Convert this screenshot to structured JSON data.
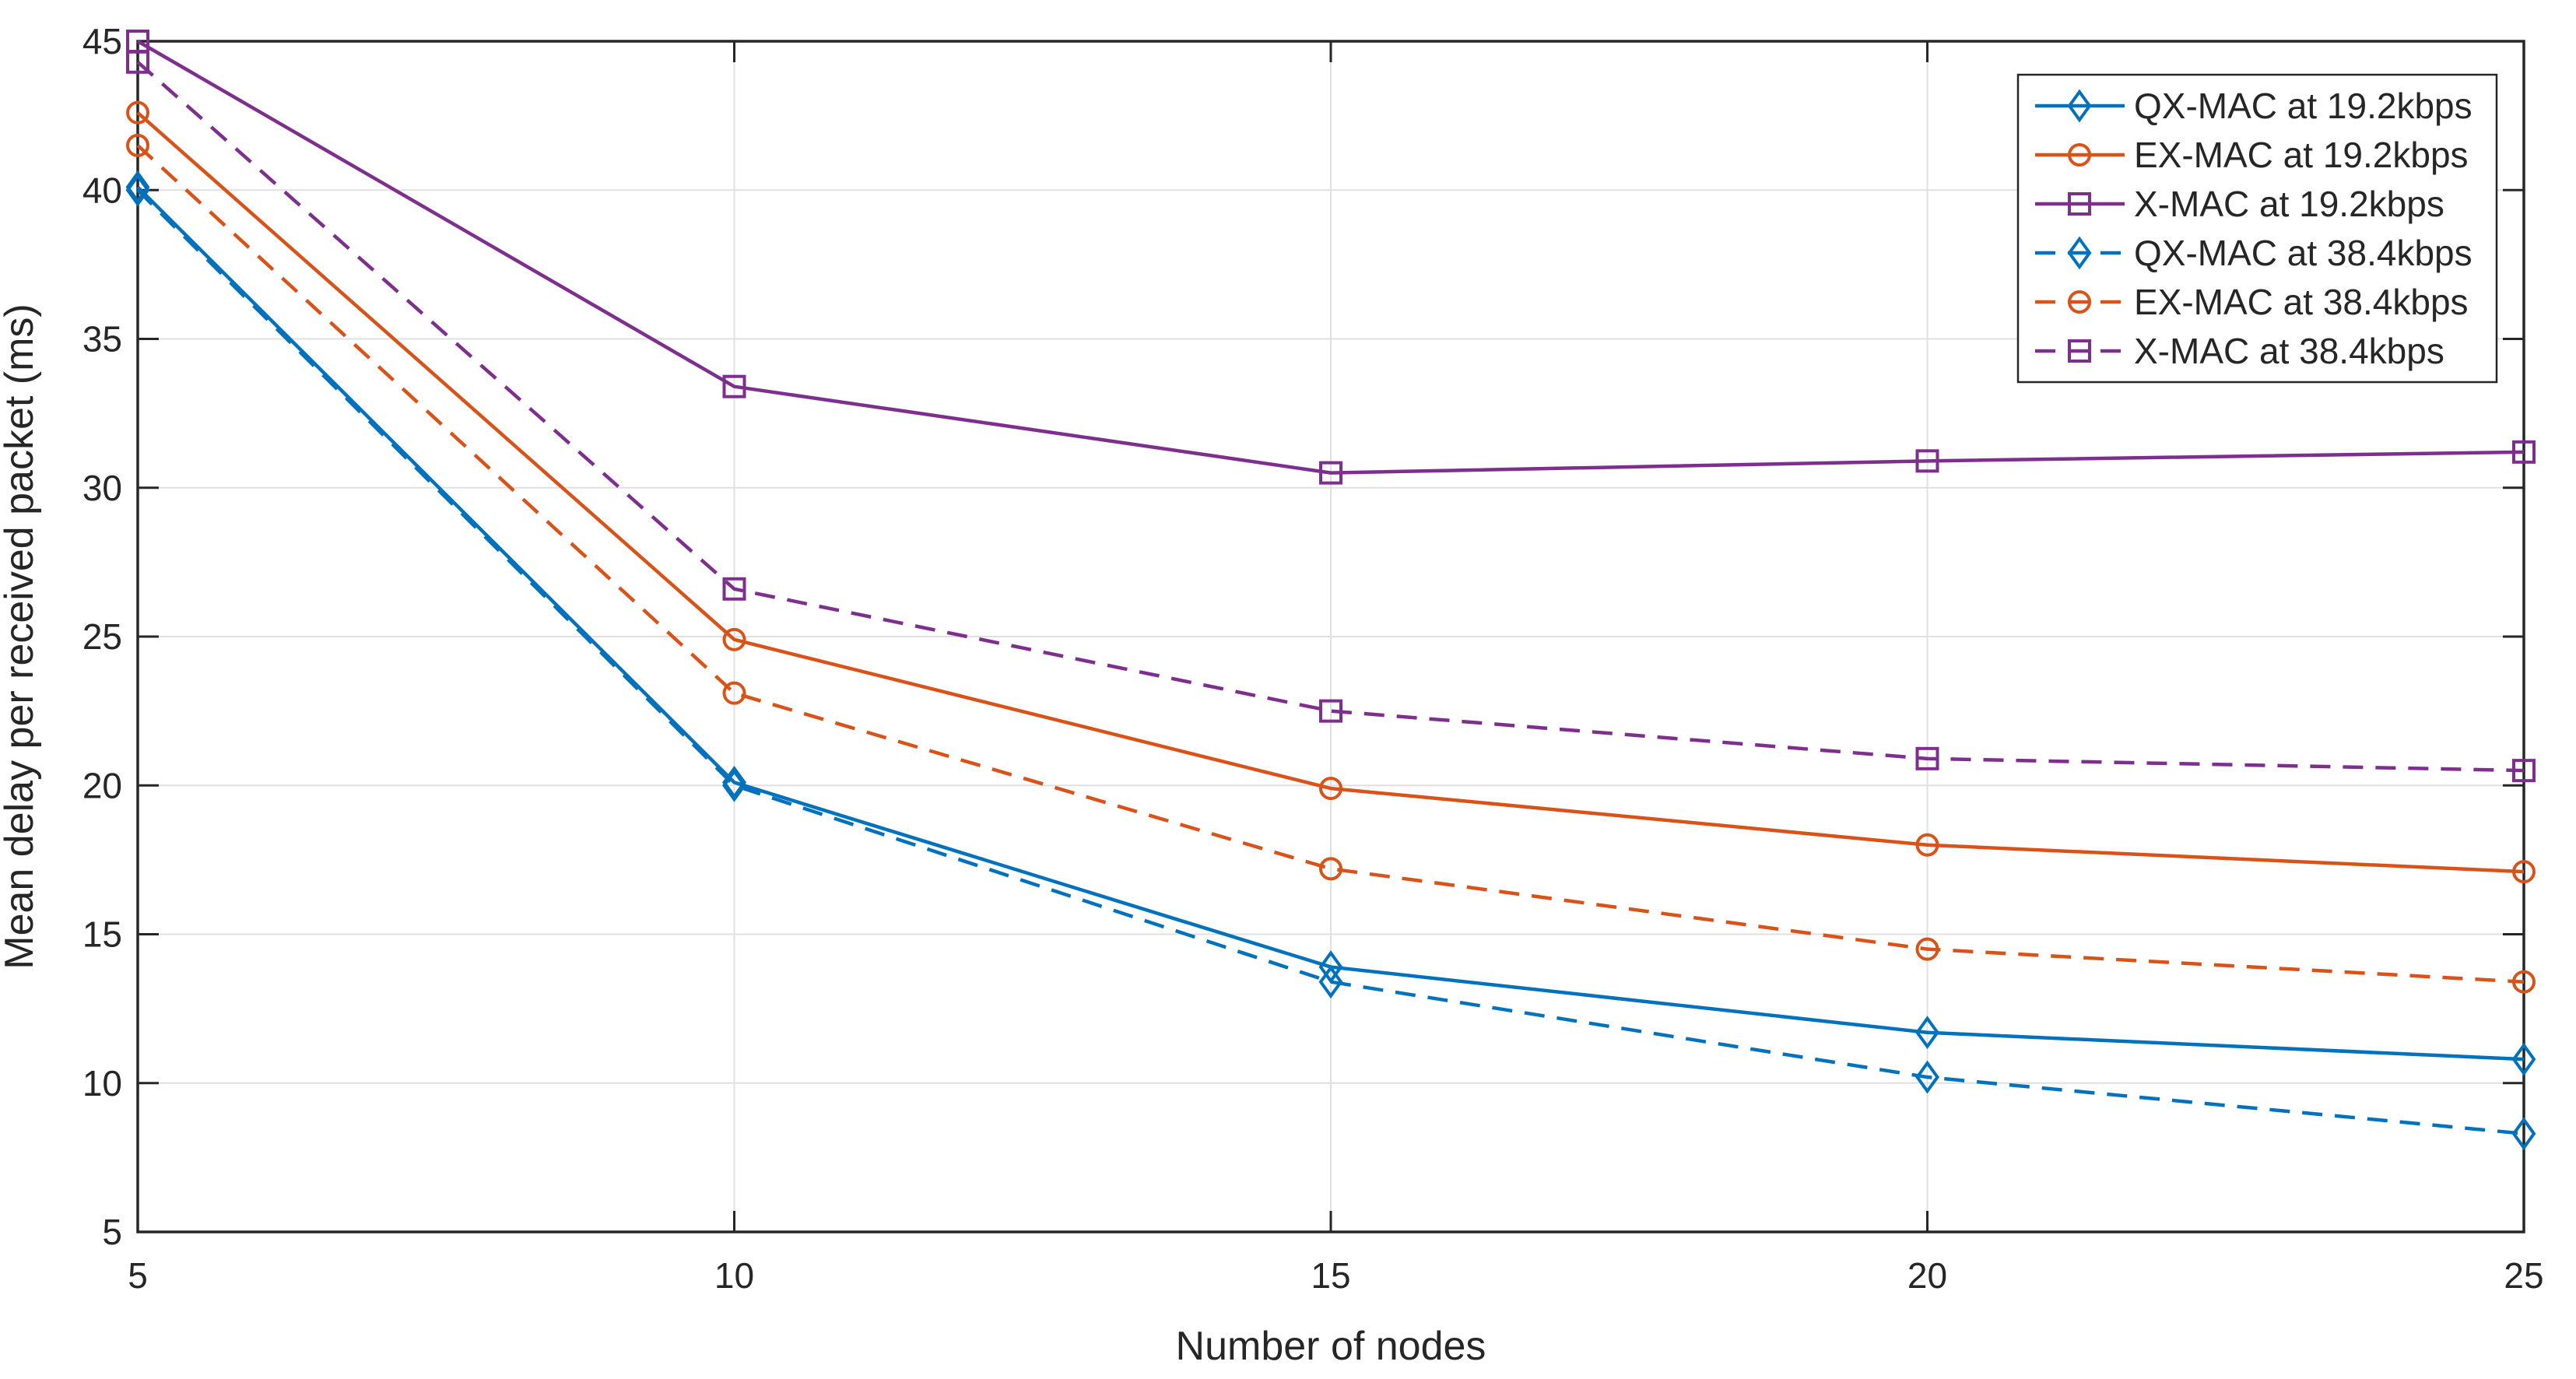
{
  "chart_data": {
    "type": "line",
    "title": "",
    "xlabel": "Number of nodes",
    "ylabel": "Mean delay per received packet (ms)",
    "x": [
      5,
      10,
      15,
      20,
      25
    ],
    "xlim": [
      5,
      25
    ],
    "ylim": [
      5,
      45
    ],
    "xticks": [
      5,
      10,
      15,
      20,
      25
    ],
    "yticks": [
      5,
      10,
      15,
      20,
      25,
      30,
      35,
      40,
      45
    ],
    "grid": true,
    "legend_position": "top-right",
    "series": [
      {
        "name": "QX-MAC at 19.2kbps",
        "color": "#0072BD",
        "style": "solid",
        "marker": "diamond",
        "values": [
          40.1,
          20.1,
          13.9,
          11.7,
          10.8
        ]
      },
      {
        "name": "EX-MAC at 19.2kbps",
        "color": "#D95319",
        "style": "solid",
        "marker": "circle",
        "values": [
          42.6,
          24.9,
          19.9,
          18.0,
          17.1
        ]
      },
      {
        "name": "X-MAC at 19.2kbps",
        "color": "#7E2F8E",
        "style": "solid",
        "marker": "square",
        "values": [
          45.0,
          33.4,
          30.5,
          30.9,
          31.2
        ]
      },
      {
        "name": "QX-MAC at 38.4kbps",
        "color": "#0072BD",
        "style": "dashed",
        "marker": "diamond",
        "values": [
          40.0,
          20.0,
          13.4,
          10.2,
          8.3
        ]
      },
      {
        "name": "EX-MAC at 38.4kbps",
        "color": "#D95319",
        "style": "dashed",
        "marker": "circle",
        "values": [
          41.5,
          23.1,
          17.2,
          14.5,
          13.4
        ]
      },
      {
        "name": "X-MAC at 38.4kbps",
        "color": "#7E2F8E",
        "style": "dashed",
        "marker": "square",
        "values": [
          44.3,
          26.6,
          22.5,
          20.9,
          20.5
        ]
      }
    ],
    "axis_color": "#262626",
    "grid_color": "#E0E0E0",
    "background": "#FFFFFF"
  }
}
